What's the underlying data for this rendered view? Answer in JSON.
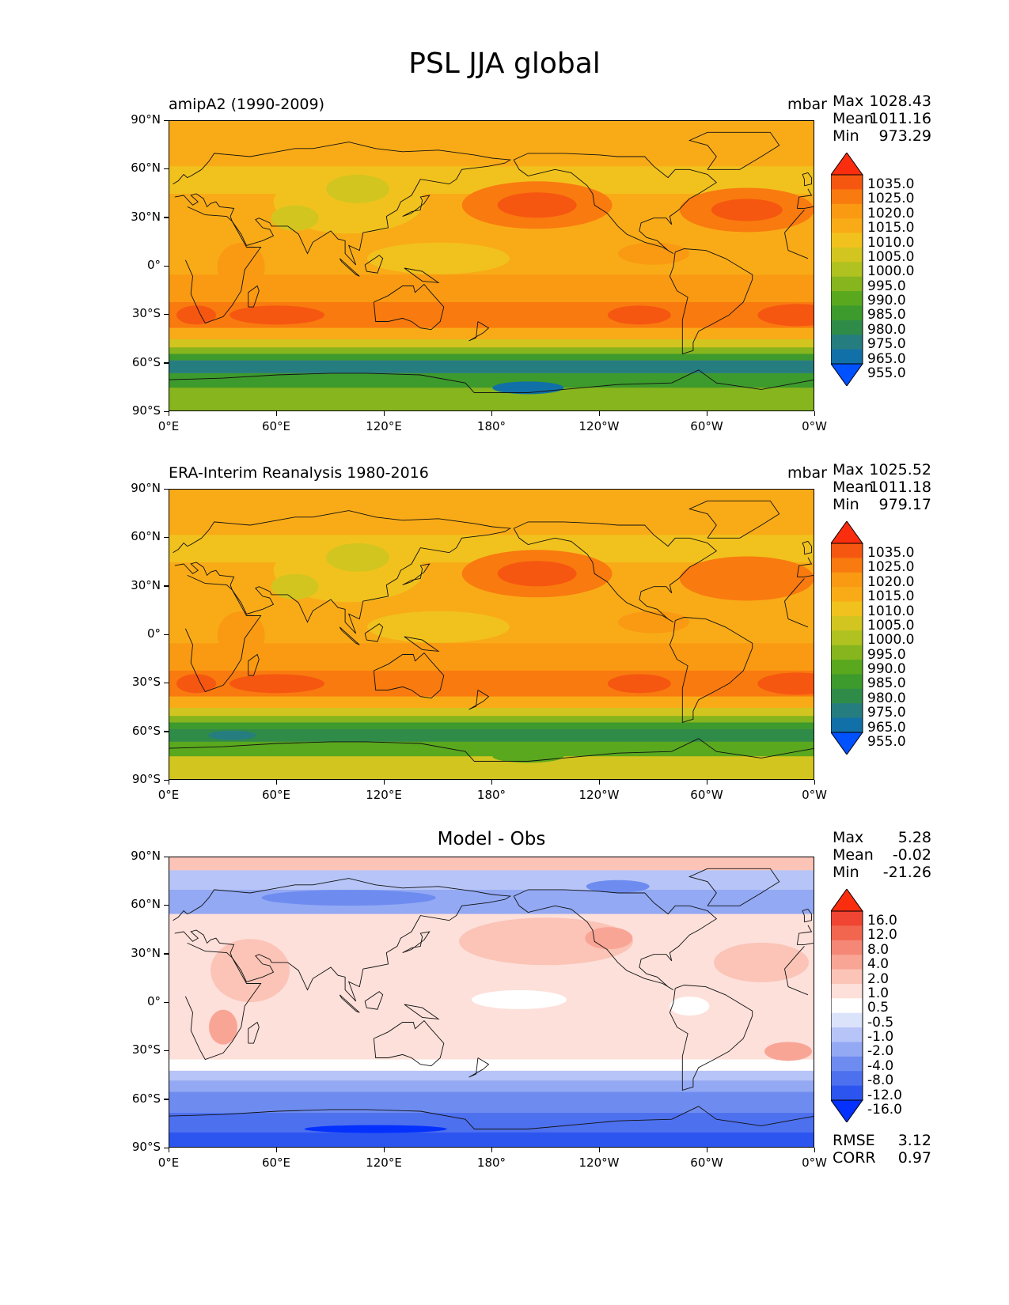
{
  "title": "PSL JJA global",
  "panels": [
    {
      "id": "model",
      "left_title": "amipA2 (1990-2009)",
      "units": "mbar",
      "stats": {
        "max_label": "Max",
        "max": "1028.43",
        "mean_label": "Mean",
        "mean": "1011.16",
        "min_label": "Min",
        "min": "973.29"
      },
      "colorbar": {
        "levels": [
          "955.0",
          "965.0",
          "975.0",
          "980.0",
          "985.0",
          "990.0",
          "995.0",
          "1000.0",
          "1005.0",
          "1010.0",
          "1015.0",
          "1020.0",
          "1025.0",
          "1035.0"
        ],
        "colors": [
          "#0051ff",
          "#1170a8",
          "#267d80",
          "#2f8c48",
          "#3d9a2c",
          "#59a81e",
          "#86b51e",
          "#b0c21f",
          "#d2c520",
          "#f1c21d",
          "#f9ab17",
          "#f99a12",
          "#f97a0f",
          "#f65710",
          "#fb2d0f"
        ]
      }
    },
    {
      "id": "obs",
      "left_title": "ERA-Interim Reanalysis 1980-2016",
      "units": "mbar",
      "stats": {
        "max_label": "Max",
        "max": "1025.52",
        "mean_label": "Mean",
        "mean": "1011.18",
        "min_label": "Min",
        "min": "979.17"
      },
      "colorbar": {
        "levels": [
          "955.0",
          "965.0",
          "975.0",
          "980.0",
          "985.0",
          "990.0",
          "995.0",
          "1000.0",
          "1005.0",
          "1010.0",
          "1015.0",
          "1020.0",
          "1025.0",
          "1035.0"
        ],
        "colors": [
          "#0051ff",
          "#1170a8",
          "#267d80",
          "#2f8c48",
          "#3d9a2c",
          "#59a81e",
          "#86b51e",
          "#b0c21f",
          "#d2c520",
          "#f1c21d",
          "#f9ab17",
          "#f99a12",
          "#f97a0f",
          "#f65710",
          "#fb2d0f"
        ]
      }
    },
    {
      "id": "diff",
      "center_title": "Model - Obs",
      "stats": {
        "max_label": "Max",
        "max": "5.28",
        "mean_label": "Mean",
        "mean": "-0.02",
        "min_label": "Min",
        "min": "-21.26"
      },
      "colorbar": {
        "levels": [
          "-16.0",
          "-12.0",
          "-8.0",
          "-4.0",
          "-2.0",
          "-1.0",
          "-0.5",
          "0.5",
          "1.0",
          "2.0",
          "4.0",
          "8.0",
          "12.0",
          "16.0"
        ],
        "colors": [
          "#0431ff",
          "#2c55f0",
          "#4d70ee",
          "#6e8cf0",
          "#93a9f4",
          "#b6c4f7",
          "#dbe3fb",
          "#ffffff",
          "#fde0da",
          "#fbc4b7",
          "#f9a596",
          "#f58776",
          "#f2664f",
          "#f04532",
          "#fb2d0f"
        ]
      },
      "rmse_label": "RMSE",
      "rmse": "3.12",
      "corr_label": "CORR",
      "corr": "0.97"
    }
  ],
  "axes": {
    "lat_labels": [
      "90°N",
      "60°N",
      "30°N",
      "0°",
      "30°S",
      "60°S",
      "90°S"
    ],
    "lon_labels": [
      "0°E",
      "60°E",
      "120°E",
      "180°",
      "120°W",
      "60°W",
      "0°W"
    ]
  }
}
